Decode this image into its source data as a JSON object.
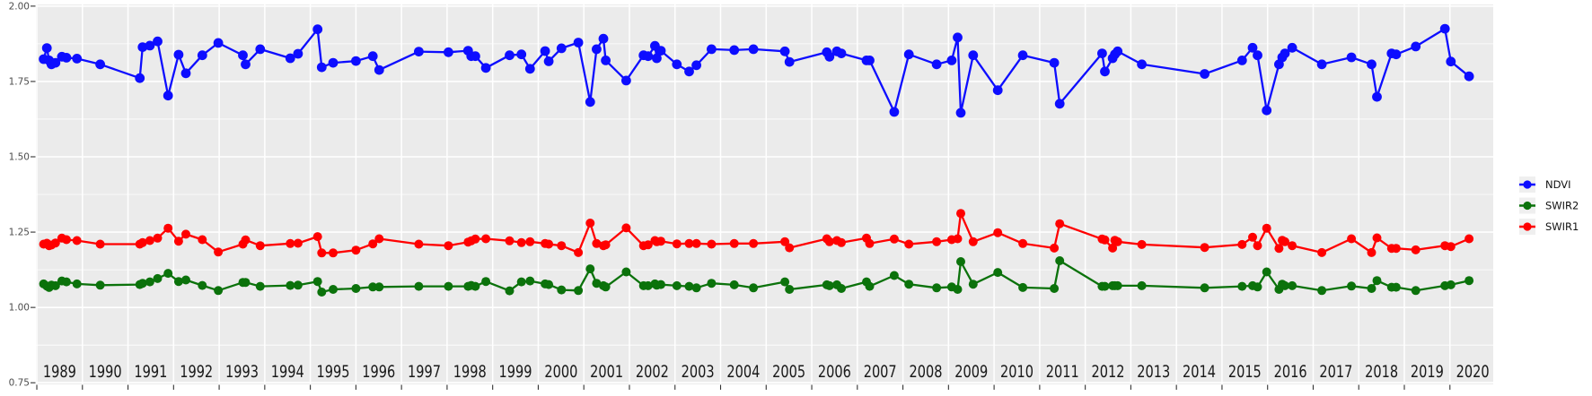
{
  "page": {
    "background": "#FFFFFF"
  },
  "chart_data": {
    "type": "line",
    "title": "",
    "xlabel": "",
    "ylabel": "",
    "x_years": [
      1989,
      1990,
      1991,
      1992,
      1993,
      1994,
      1995,
      1996,
      1997,
      1998,
      1999,
      2000,
      2001,
      2002,
      2003,
      2004,
      2005,
      2006,
      2007,
      2008,
      2009,
      2010,
      2011,
      2012,
      2013,
      2014,
      2015,
      2016,
      2017,
      2018,
      2019,
      2020
    ],
    "y_ticks": [
      "2.00",
      "1.75",
      "1.50",
      "1.25",
      "1.00",
      "0.75"
    ],
    "y_minor": [
      1.875,
      1.625,
      1.375,
      1.125,
      0.875
    ],
    "xlim": [
      1988.98,
      2020.95
    ],
    "ylim": [
      0.7447,
      2.0055
    ],
    "grid": true,
    "panel_bg": "#EBEBEB",
    "grid_color": "#FFFFFF",
    "tick_color": "#333333",
    "axis_label_color": "#4D4D4D",
    "year_label_color": "#1A1A1A",
    "legend": {
      "position": "right",
      "key_bg": "#EFEFEF",
      "text_color": "#111111"
    },
    "x": [
      1989.15,
      1989.22,
      1989.27,
      1989.32,
      1989.41,
      1989.55,
      1989.65,
      1989.88,
      1990.39,
      1991.26,
      1991.32,
      1991.48,
      1991.65,
      1991.88,
      1992.11,
      1992.27,
      1992.63,
      1992.98,
      1993.52,
      1993.58,
      1993.9,
      1994.56,
      1994.73,
      1995.16,
      1995.25,
      1995.5,
      1996.0,
      1996.37,
      1996.51,
      1997.38,
      1998.03,
      1998.46,
      1998.53,
      1998.62,
      1998.85,
      1999.37,
      1999.63,
      1999.82,
      2000.15,
      2000.23,
      2000.51,
      2000.88,
      2001.14,
      2001.28,
      2001.43,
      2001.48,
      2001.93,
      2002.31,
      2002.41,
      2002.56,
      2002.6,
      2002.69,
      2003.04,
      2003.31,
      2003.47,
      2003.8,
      2004.3,
      2004.72,
      2005.41,
      2005.51,
      2006.33,
      2006.39,
      2006.55,
      2006.65,
      2007.2,
      2007.27,
      2007.81,
      2008.13,
      2008.74,
      2009.07,
      2009.2,
      2009.27,
      2009.54,
      2010.08,
      2010.63,
      2011.32,
      2011.44,
      2012.37,
      2012.43,
      2012.6,
      2012.65,
      2012.71,
      2013.24,
      2014.62,
      2015.44,
      2015.67,
      2015.78,
      2015.98,
      2016.25,
      2016.32,
      2016.38,
      2016.54,
      2017.19,
      2017.84,
      2018.28,
      2018.4,
      2018.72,
      2018.82,
      2019.25,
      2019.89,
      2020.02,
      2020.42
    ],
    "series": [
      {
        "name": "NDVI",
        "color": "#0D0DFF",
        "values": [
          1.824,
          1.861,
          1.82,
          1.807,
          1.812,
          1.832,
          1.829,
          1.826,
          1.807,
          1.761,
          1.864,
          1.869,
          1.883,
          1.703,
          1.839,
          1.777,
          1.837,
          1.878,
          1.837,
          1.807,
          1.857,
          1.827,
          1.842,
          1.923,
          1.797,
          1.812,
          1.818,
          1.834,
          1.788,
          1.849,
          1.847,
          1.852,
          1.834,
          1.834,
          1.795,
          1.837,
          1.84,
          1.792,
          1.851,
          1.817,
          1.86,
          1.879,
          1.682,
          1.857,
          1.892,
          1.82,
          1.753,
          1.837,
          1.834,
          1.868,
          1.827,
          1.852,
          1.807,
          1.783,
          1.804,
          1.857,
          1.854,
          1.857,
          1.85,
          1.815,
          1.847,
          1.832,
          1.85,
          1.843,
          1.82,
          1.82,
          1.649,
          1.84,
          1.807,
          1.82,
          1.896,
          1.646,
          1.837,
          1.721,
          1.837,
          1.812,
          1.676,
          1.843,
          1.783,
          1.827,
          1.84,
          1.85,
          1.807,
          1.775,
          1.82,
          1.862,
          1.837,
          1.654,
          1.807,
          1.83,
          1.843,
          1.862,
          1.807,
          1.83,
          1.807,
          1.699,
          1.843,
          1.84,
          1.866,
          1.925,
          1.816,
          1.767
        ]
      },
      {
        "name": "SWIR2",
        "color": "#0B720B",
        "values": [
          1.078,
          1.071,
          1.066,
          1.074,
          1.072,
          1.088,
          1.085,
          1.078,
          1.074,
          1.076,
          1.08,
          1.085,
          1.096,
          1.113,
          1.086,
          1.091,
          1.073,
          1.056,
          1.083,
          1.083,
          1.07,
          1.073,
          1.074,
          1.086,
          1.051,
          1.06,
          1.063,
          1.068,
          1.068,
          1.07,
          1.07,
          1.07,
          1.073,
          1.07,
          1.086,
          1.055,
          1.085,
          1.088,
          1.078,
          1.076,
          1.058,
          1.056,
          1.128,
          1.08,
          1.072,
          1.068,
          1.118,
          1.072,
          1.072,
          1.078,
          1.074,
          1.076,
          1.072,
          1.07,
          1.065,
          1.08,
          1.075,
          1.065,
          1.085,
          1.06,
          1.075,
          1.072,
          1.075,
          1.063,
          1.085,
          1.07,
          1.106,
          1.077,
          1.065,
          1.068,
          1.06,
          1.152,
          1.077,
          1.116,
          1.066,
          1.063,
          1.155,
          1.07,
          1.07,
          1.072,
          1.072,
          1.072,
          1.072,
          1.065,
          1.07,
          1.072,
          1.068,
          1.118,
          1.06,
          1.077,
          1.072,
          1.072,
          1.056,
          1.071,
          1.063,
          1.089,
          1.067,
          1.067,
          1.056,
          1.072,
          1.075,
          1.089
        ]
      },
      {
        "name": "SWIR1",
        "color": "#FF0000",
        "values": [
          1.21,
          1.213,
          1.205,
          1.207,
          1.214,
          1.23,
          1.225,
          1.222,
          1.21,
          1.21,
          1.215,
          1.222,
          1.23,
          1.263,
          1.22,
          1.243,
          1.225,
          1.184,
          1.21,
          1.224,
          1.205,
          1.212,
          1.213,
          1.235,
          1.181,
          1.181,
          1.19,
          1.211,
          1.228,
          1.21,
          1.205,
          1.217,
          1.221,
          1.227,
          1.228,
          1.221,
          1.215,
          1.218,
          1.212,
          1.21,
          1.205,
          1.182,
          1.28,
          1.212,
          1.205,
          1.208,
          1.264,
          1.205,
          1.208,
          1.222,
          1.218,
          1.22,
          1.211,
          1.212,
          1.212,
          1.21,
          1.212,
          1.212,
          1.218,
          1.198,
          1.228,
          1.218,
          1.222,
          1.215,
          1.23,
          1.212,
          1.227,
          1.21,
          1.218,
          1.225,
          1.228,
          1.312,
          1.218,
          1.248,
          1.212,
          1.197,
          1.278,
          1.227,
          1.224,
          1.197,
          1.223,
          1.218,
          1.209,
          1.199,
          1.209,
          1.233,
          1.205,
          1.263,
          1.196,
          1.223,
          1.218,
          1.205,
          1.182,
          1.228,
          1.182,
          1.231,
          1.196,
          1.196,
          1.191,
          1.205,
          1.202,
          1.228
        ]
      }
    ]
  }
}
